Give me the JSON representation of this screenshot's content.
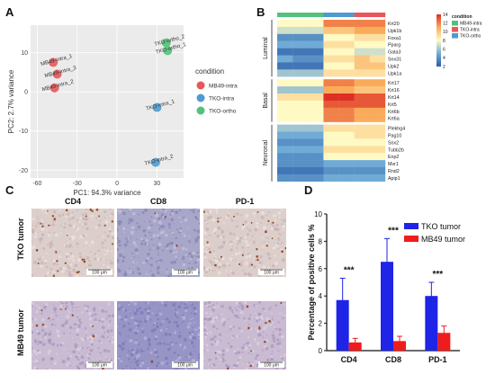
{
  "panel_labels": [
    "A",
    "B",
    "C",
    "D"
  ],
  "colors": {
    "mb49": "#e8575a",
    "tko_intra": "#4f9bd1",
    "tko_ortho": "#52c27a",
    "bar_tko": "#1f24e6",
    "bar_mb49": "#f01c1c"
  },
  "chart_data": [
    {
      "type": "scatter",
      "panel": "A",
      "xlabel": "PC1: 94.3% variance",
      "ylabel": "PC2: 2.7% variance",
      "xlim": [
        -65,
        50
      ],
      "ylim": [
        -22,
        17
      ],
      "xticks": [
        "-60",
        "-30",
        "0",
        "30"
      ],
      "yticks": [
        "10",
        "0",
        "-10",
        "-20"
      ],
      "grid": true,
      "legend_title": "condition",
      "legend_placement": "right",
      "series": [
        {
          "name": "MB49-intra",
          "color_key": "mb49",
          "points": [
            {
              "label": "MB49-intra_1",
              "x": -48,
              "y": 7.5
            },
            {
              "label": "MB49-intra_3",
              "x": -45,
              "y": 4.5
            },
            {
              "label": "MB49-intra_2",
              "x": -47,
              "y": 1
            }
          ]
        },
        {
          "name": "TKO-intra",
          "color_key": "tko_intra",
          "points": [
            {
              "label": "TKO-intra_1",
              "x": 30,
              "y": -4
            },
            {
              "label": "TKO-intra_2",
              "x": 29,
              "y": -18
            }
          ]
        },
        {
          "name": "TKO-ortho",
          "color_key": "tko_ortho",
          "points": [
            {
              "label": "TKO-ortho_2",
              "x": 37,
              "y": 12.5
            },
            {
              "label": "TKO-ortho_1",
              "x": 38,
              "y": 10.5
            }
          ]
        }
      ]
    },
    {
      "type": "heatmap",
      "panel": "B",
      "rows": [
        "Krt20",
        "Upk1b",
        "Foxa1",
        "Pparg",
        "Gata3",
        "Snx31",
        "Upk2",
        "Upk1a",
        "Krt17",
        "Krt16",
        "Krt14",
        "Krt5",
        "Krt6b",
        "Krt6a",
        "Plekhg4",
        "Pag10",
        "Sox2",
        "Tubb2b",
        "Enp2",
        "Msr1",
        "Rnd2",
        "Apip1"
      ],
      "groups": [
        {
          "name": "Luminal",
          "rows": [
            0,
            7
          ]
        },
        {
          "name": "Basal",
          "rows": [
            8,
            13
          ]
        },
        {
          "name": "Neuronal",
          "rows": [
            14,
            21
          ]
        }
      ],
      "columns": [
        {
          "condition": "MB49-intra"
        },
        {
          "condition": "MB49-intra"
        },
        {
          "condition": "MB49-intra"
        },
        {
          "condition": "TKO-intra"
        },
        {
          "condition": "TKO-intra"
        },
        {
          "condition": "TKO-ortho"
        },
        {
          "condition": "TKO-ortho"
        }
      ],
      "values": [
        [
          8,
          8,
          8,
          12,
          12,
          12,
          12
        ],
        [
          7,
          7,
          7,
          10,
          10,
          11,
          11
        ],
        [
          4,
          4,
          4,
          8,
          8,
          9,
          9
        ],
        [
          5,
          5,
          5,
          9,
          9,
          8,
          8
        ],
        [
          3,
          3,
          3,
          8,
          8,
          7,
          7
        ],
        [
          5,
          4,
          4,
          9,
          9,
          10,
          9
        ],
        [
          3,
          3,
          3,
          8,
          8,
          10,
          10
        ],
        [
          6,
          6,
          6,
          9,
          9,
          9,
          9
        ],
        [
          8,
          8,
          8,
          12,
          12,
          11,
          11
        ],
        [
          6,
          6,
          6,
          11,
          11,
          10,
          10
        ],
        [
          9,
          9,
          9,
          14,
          14,
          13,
          13
        ],
        [
          8,
          8,
          8,
          13,
          13,
          13,
          13
        ],
        [
          8,
          8,
          8,
          12,
          12,
          11,
          11
        ],
        [
          8,
          8,
          8,
          12,
          12,
          11,
          11
        ],
        [
          6,
          6,
          6,
          9,
          9,
          9,
          9
        ],
        [
          5,
          5,
          5,
          8,
          8,
          9,
          9
        ],
        [
          4,
          4,
          4,
          8,
          8,
          8,
          8
        ],
        [
          5,
          5,
          5,
          9,
          9,
          9,
          9
        ],
        [
          4,
          4,
          4,
          8,
          8,
          8,
          8
        ],
        [
          4,
          4,
          4,
          5,
          5,
          5,
          5
        ],
        [
          3,
          3,
          3,
          4,
          4,
          4,
          4
        ],
        [
          4,
          4,
          4,
          5,
          5,
          5,
          5
        ]
      ],
      "color_scale": {
        "min": 2,
        "max": 14,
        "ticks": [
          "14",
          "12",
          "10",
          "8",
          "6",
          "4",
          "2"
        ]
      },
      "legend_title": "condition",
      "legend_entries": [
        {
          "name": "MB49-intra",
          "color_key": "tko_ortho"
        },
        {
          "name": "TKO-intra",
          "color_key": "mb49"
        },
        {
          "name": "TKO-ortho",
          "color_key": "tko_intra"
        }
      ]
    },
    {
      "type": "bar",
      "panel": "D",
      "categories": [
        "CD4",
        "CD8",
        "PD-1"
      ],
      "ylabel": "Percentage of positive cells %",
      "ylim": [
        0,
        10
      ],
      "yticks": [
        0,
        2,
        4,
        6,
        8,
        10
      ],
      "legend_placement": "top-right",
      "series": [
        {
          "name": "TKO tumor",
          "color_key": "bar_tko",
          "values": [
            3.7,
            6.5,
            4.0
          ],
          "errors": [
            1.6,
            1.7,
            1.0
          ]
        },
        {
          "name": "MB49 tumor",
          "color_key": "bar_mb49",
          "values": [
            0.6,
            0.7,
            1.3
          ],
          "errors": [
            0.3,
            0.35,
            0.5
          ]
        }
      ],
      "significance": [
        "***",
        "***",
        "***"
      ]
    }
  ],
  "panel_c": {
    "columns": [
      "CD4",
      "CD8",
      "PD-1"
    ],
    "rows": [
      "TKO tumor",
      "MB49 tumor"
    ],
    "scale_bar": "100 μm",
    "tiles": [
      {
        "stain": "light",
        "dots": 0.7
      },
      {
        "stain": "blue-dense",
        "dots": 0.1
      },
      {
        "stain": "light",
        "dots": 0.6
      },
      {
        "stain": "purple",
        "dots": 0.25
      },
      {
        "stain": "blue",
        "dots": 0.02
      },
      {
        "stain": "purple",
        "dots": 0.3
      }
    ]
  }
}
